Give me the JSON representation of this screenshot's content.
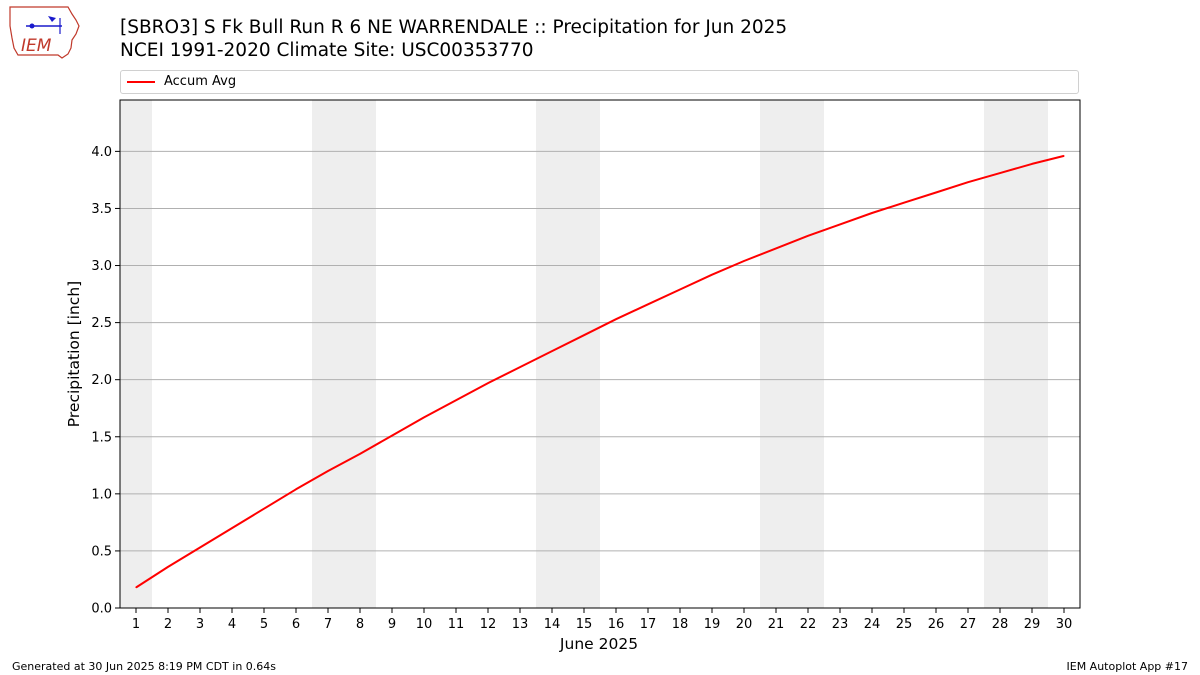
{
  "header": {
    "title_line1": "[SBRO3] S Fk Bull Run R 6 NE WARRENDALE :: Precipitation for Jun 2025",
    "title_line2": "NCEI 1991-2020 Climate Site: USC00353770"
  },
  "logo": {
    "text": "IEM"
  },
  "footer": {
    "left": "Generated at 30 Jun 2025 8:19 PM CDT in 0.64s",
    "right": "IEM Autoplot App #17"
  },
  "colors": {
    "line": "#ff0000",
    "weekend_band": "#eeeeee",
    "grid": "#b0b0b0"
  },
  "chart_data": {
    "type": "line",
    "title": "[SBRO3] S Fk Bull Run R 6 NE WARRENDALE :: Precipitation for Jun 2025",
    "xlabel": "June 2025",
    "ylabel": "Precipitation [inch]",
    "xlim": [
      0.5,
      30.5
    ],
    "ylim": [
      0,
      4.45
    ],
    "x_ticks": [
      1,
      2,
      3,
      4,
      5,
      6,
      7,
      8,
      9,
      10,
      11,
      12,
      13,
      14,
      15,
      16,
      17,
      18,
      19,
      20,
      21,
      22,
      23,
      24,
      25,
      26,
      27,
      28,
      29,
      30
    ],
    "y_ticks": [
      0.0,
      0.5,
      1.0,
      1.5,
      2.0,
      2.5,
      3.0,
      3.5,
      4.0
    ],
    "y_tick_labels": [
      "0.0",
      "0.5",
      "1.0",
      "1.5",
      "2.0",
      "2.5",
      "3.0",
      "3.5",
      "4.0"
    ],
    "grid": "horizontal",
    "legend_position": "top",
    "weekend_bands": [
      [
        0.5,
        1.5
      ],
      [
        6.5,
        8.5
      ],
      [
        13.5,
        15.5
      ],
      [
        20.5,
        22.5
      ],
      [
        27.5,
        29.5
      ]
    ],
    "series": [
      {
        "name": "Accum Avg",
        "x": [
          1,
          2,
          3,
          4,
          5,
          6,
          7,
          8,
          9,
          10,
          11,
          12,
          13,
          14,
          15,
          16,
          17,
          18,
          19,
          20,
          21,
          22,
          23,
          24,
          25,
          26,
          27,
          28,
          29,
          30
        ],
        "values": [
          0.18,
          0.36,
          0.53,
          0.7,
          0.87,
          1.04,
          1.2,
          1.35,
          1.51,
          1.67,
          1.82,
          1.97,
          2.11,
          2.25,
          2.39,
          2.53,
          2.66,
          2.79,
          2.92,
          3.04,
          3.15,
          3.26,
          3.36,
          3.46,
          3.55,
          3.64,
          3.73,
          3.81,
          3.89,
          3.96
        ]
      }
    ]
  }
}
